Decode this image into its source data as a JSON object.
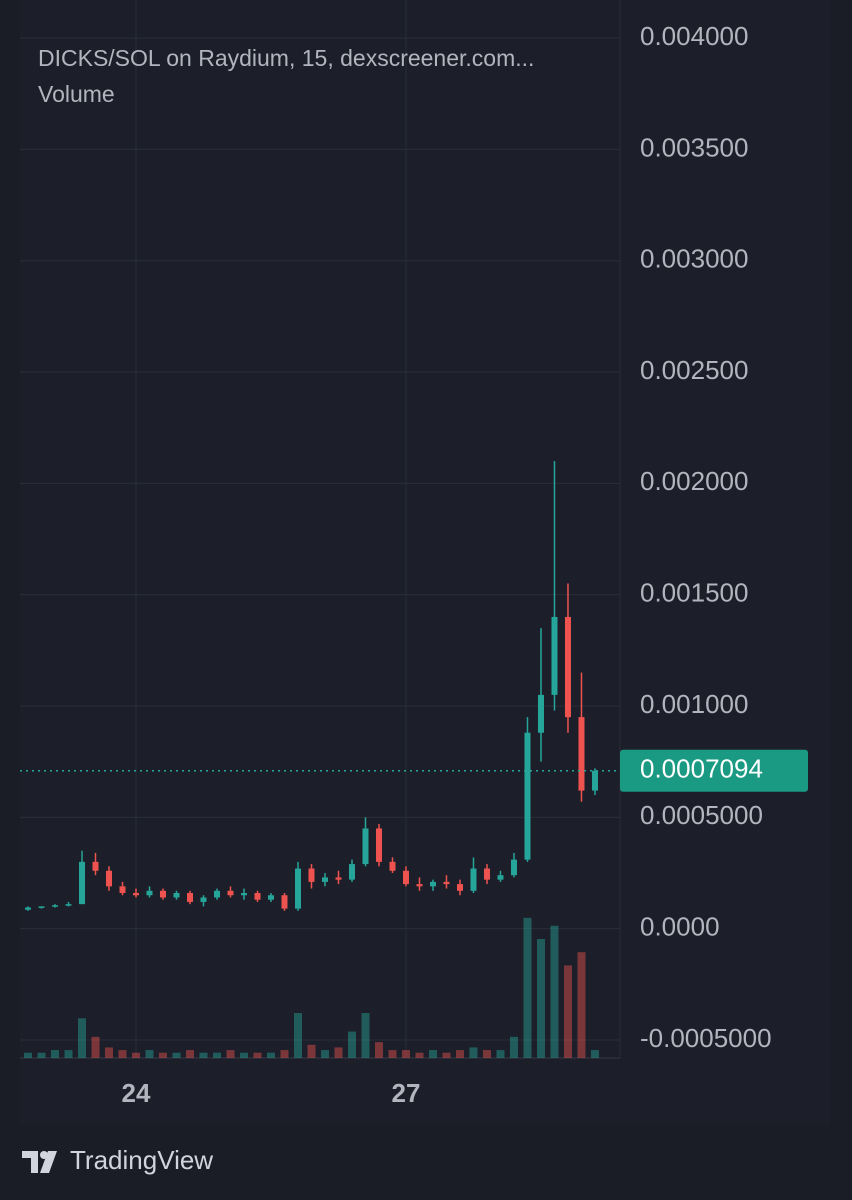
{
  "chart_data": {
    "type": "candlestick",
    "title": "DICKS/SOL on Raydium, 15, dexscreener.com...",
    "volume_label": "Volume",
    "brand": "TradingView",
    "up_color": "#26a69a",
    "down_color": "#ef5350",
    "grid": true,
    "xlim": [
      22.711,
      29.378
    ],
    "xticks": [
      24,
      27
    ],
    "ylim": [
      -0.000581,
      0.004171
    ],
    "yticks": [
      {
        "value": 0.004,
        "label": "0.004000"
      },
      {
        "value": 0.0035,
        "label": "0.003500"
      },
      {
        "value": 0.003,
        "label": "0.003000"
      },
      {
        "value": 0.0025,
        "label": "0.002500"
      },
      {
        "value": 0.002,
        "label": "0.002000"
      },
      {
        "value": 0.0015,
        "label": "0.001500"
      },
      {
        "value": 0.001,
        "label": "0.001000"
      },
      {
        "value": 0.0005,
        "label": "0.0005000"
      },
      {
        "value": 0,
        "label": "0.0000"
      },
      {
        "value": -0.0005,
        "label": "-0.0005000"
      }
    ],
    "last_price": 0.0007094,
    "volume_ylim": [
      0,
      100
    ],
    "x": [
      22.8,
      22.95,
      23.1,
      23.25,
      23.4,
      23.55,
      23.7,
      23.85,
      24.0,
      24.15,
      24.3,
      24.45,
      24.6,
      24.75,
      24.9,
      25.05,
      25.2,
      25.35,
      25.5,
      25.65,
      25.8,
      25.95,
      26.1,
      26.25,
      26.4,
      26.55,
      26.7,
      26.85,
      27.0,
      27.15,
      27.3,
      27.45,
      27.6,
      27.75,
      27.9,
      28.05,
      28.2,
      28.35,
      28.5,
      28.65,
      28.8,
      28.95,
      29.1
    ],
    "open": [
      8.5e-05,
      9.5e-05,
      0.0001,
      0.000105,
      0.00011,
      0.0003,
      0.00026,
      0.00019,
      0.00016,
      0.00015,
      0.00017,
      0.00014,
      0.00016,
      0.00012,
      0.00014,
      0.00017,
      0.00015,
      0.00016,
      0.00013,
      0.00015,
      9e-05,
      0.00027,
      0.00021,
      0.00023,
      0.00022,
      0.00029,
      0.00045,
      0.0003,
      0.00026,
      0.0002,
      0.00019,
      0.00021,
      0.0002,
      0.00017,
      0.00027,
      0.00022,
      0.00024,
      0.00031,
      0.00088,
      0.00105,
      0.0014,
      0.00095,
      0.00062
    ],
    "high": [
      0.0001,
      0.0001,
      0.00011,
      0.00012,
      0.00035,
      0.00034,
      0.00028,
      0.00021,
      0.00018,
      0.00019,
      0.00018,
      0.00017,
      0.00017,
      0.00015,
      0.00018,
      0.00019,
      0.00018,
      0.00017,
      0.00016,
      0.00016,
      0.0003,
      0.00029,
      0.00025,
      0.00026,
      0.00031,
      0.0005,
      0.00047,
      0.00032,
      0.00028,
      0.00023,
      0.00022,
      0.00024,
      0.00022,
      0.00032,
      0.00029,
      0.00026,
      0.00034,
      0.00095,
      0.00135,
      0.0021,
      0.00155,
      0.00115,
      0.00072
    ],
    "low": [
      8e-05,
      9e-05,
      9.5e-05,
      0.0001,
      0.00011,
      0.00024,
      0.00017,
      0.00015,
      0.00014,
      0.00014,
      0.00013,
      0.00013,
      0.00011,
      0.0001,
      0.00013,
      0.00014,
      0.00013,
      0.00012,
      0.00012,
      8e-05,
      8e-05,
      0.00018,
      0.00019,
      0.0002,
      0.00021,
      0.00028,
      0.00028,
      0.00025,
      0.00019,
      0.00017,
      0.00017,
      0.00018,
      0.00015,
      0.00016,
      0.0002,
      0.00021,
      0.00023,
      0.0003,
      0.00075,
      0.00098,
      0.00088,
      0.00057,
      0.0006
    ],
    "close": [
      9.5e-05,
      0.0001,
      0.000105,
      0.00011,
      0.0003,
      0.00026,
      0.00019,
      0.00016,
      0.00015,
      0.00017,
      0.00014,
      0.00016,
      0.00012,
      0.00014,
      0.00017,
      0.00015,
      0.00016,
      0.00013,
      0.00015,
      9e-05,
      0.00027,
      0.00021,
      0.00023,
      0.00022,
      0.00029,
      0.00045,
      0.0003,
      0.00026,
      0.0002,
      0.00019,
      0.00021,
      0.0002,
      0.00017,
      0.00027,
      0.00022,
      0.00024,
      0.00031,
      0.00088,
      0.00105,
      0.0014,
      0.00095,
      0.00062,
      0.0007094
    ],
    "volume": [
      2,
      2,
      3,
      3,
      15,
      8,
      4,
      3,
      2,
      3,
      2,
      2,
      3,
      2,
      2,
      3,
      2,
      2,
      2,
      3,
      17,
      5,
      3,
      4,
      10,
      17,
      6,
      3,
      3,
      2,
      3,
      2,
      3,
      4,
      3,
      3,
      8,
      53,
      45,
      50,
      35,
      40,
      3
    ]
  }
}
